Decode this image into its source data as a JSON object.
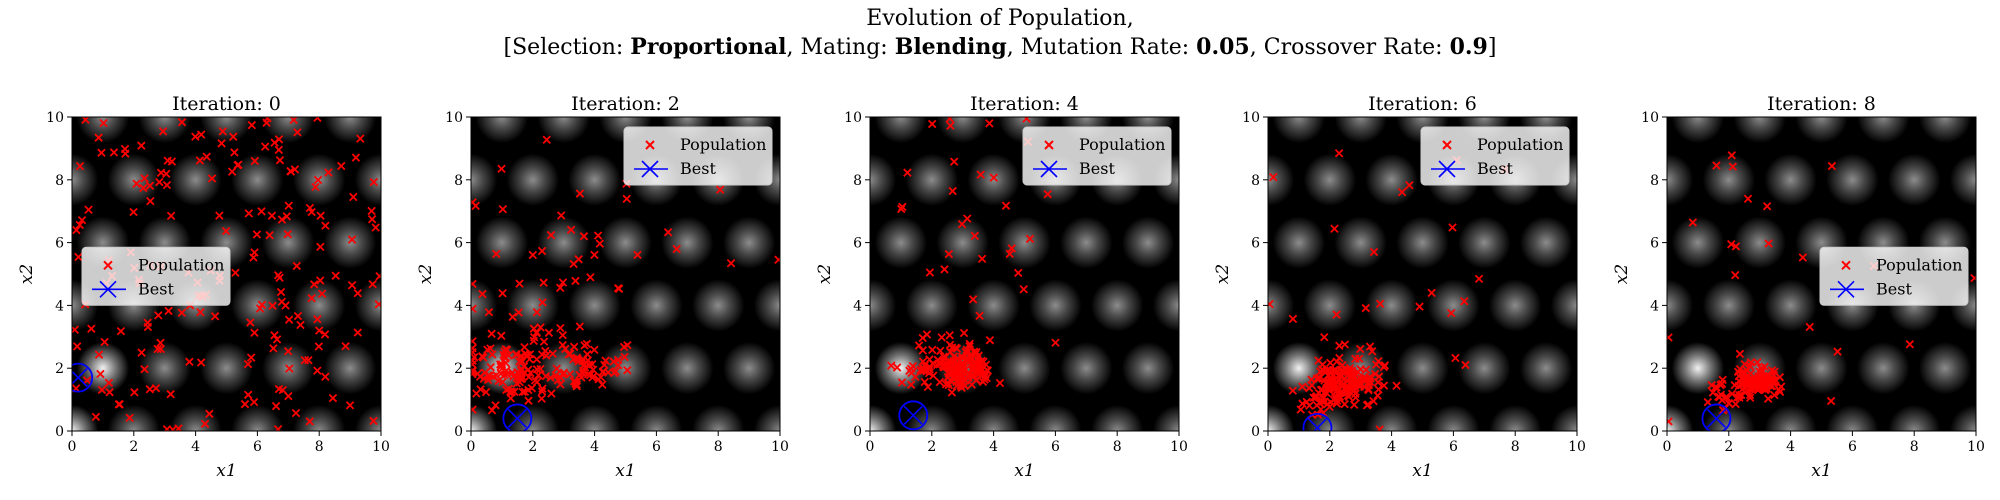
{
  "figure": {
    "title_line1": "Evolution of Population,",
    "title_line2": {
      "p1": "[Selection: ",
      "selection": "Proportional",
      "p2": ", Mating: ",
      "mating": "Blending",
      "p3": ", Mutation Rate: ",
      "mutation_rate": "0.05",
      "p4": ", Crossover Rate: ",
      "crossover_rate": "0.9",
      "p5": "]"
    }
  },
  "colors": {
    "population": "#ff0000",
    "best": "#0000ff",
    "background": "#000000"
  },
  "chart_data": [
    {
      "type": "scatter",
      "title": "Iteration: 0",
      "xlabel": "x1",
      "ylabel": "x2",
      "xlim": [
        0,
        10
      ],
      "ylim": [
        0,
        10
      ],
      "xticks": [
        0,
        2,
        4,
        6,
        8,
        10
      ],
      "yticks": [
        0,
        2,
        4,
        6,
        8,
        10
      ],
      "legend": {
        "placement": "center-left",
        "entries": [
          "Population",
          "Best"
        ]
      },
      "population": {
        "spread": "uniform",
        "count": 200
      },
      "best": [
        0.2,
        1.7
      ]
    },
    {
      "type": "scatter",
      "title": "Iteration: 2",
      "xlabel": "x1",
      "ylabel": "x2",
      "xlim": [
        0,
        10
      ],
      "ylim": [
        0,
        10
      ],
      "xticks": [
        0,
        2,
        4,
        6,
        8,
        10
      ],
      "yticks": [
        0,
        2,
        4,
        6,
        8,
        10
      ],
      "legend": {
        "placement": "top-right",
        "entries": [
          "Population",
          "Best"
        ]
      },
      "population": {
        "clusters": [
          [
            1.4,
            1.6,
            0.9,
            0.9,
            120
          ],
          [
            3.2,
            1.7,
            0.8,
            0.6,
            60
          ],
          [
            3.5,
            4.5,
            2.8,
            2.5,
            40
          ]
        ]
      },
      "best": [
        1.5,
        0.4
      ]
    },
    {
      "type": "scatter",
      "title": "Iteration: 4",
      "xlabel": "x1",
      "ylabel": "x2",
      "xlim": [
        0,
        10
      ],
      "ylim": [
        0,
        10
      ],
      "xticks": [
        0,
        2,
        4,
        6,
        8,
        10
      ],
      "yticks": [
        0,
        2,
        4,
        6,
        8,
        10
      ],
      "legend": {
        "placement": "top-right",
        "entries": [
          "Population",
          "Best"
        ]
      },
      "population": {
        "clusters": [
          [
            2.9,
            1.7,
            0.55,
            0.45,
            140
          ],
          [
            1.6,
            1.9,
            0.6,
            0.6,
            30
          ],
          [
            3.0,
            5.0,
            1.8,
            2.8,
            30
          ]
        ]
      },
      "best": [
        1.4,
        0.5
      ]
    },
    {
      "type": "scatter",
      "title": "Iteration: 6",
      "xlabel": "x1",
      "ylabel": "x2",
      "xlim": [
        0,
        10
      ],
      "ylim": [
        0,
        10
      ],
      "xticks": [
        0,
        2,
        4,
        6,
        8,
        10
      ],
      "yticks": [
        0,
        2,
        4,
        6,
        8,
        10
      ],
      "legend": {
        "placement": "top-right",
        "entries": [
          "Population",
          "Best"
        ]
      },
      "population": {
        "clusters": [
          [
            2.5,
            1.3,
            0.6,
            0.5,
            150
          ],
          [
            1.7,
            0.8,
            0.4,
            0.4,
            30
          ],
          [
            4.0,
            3.5,
            2.5,
            2.8,
            25
          ]
        ]
      },
      "best": [
        1.6,
        0.1
      ]
    },
    {
      "type": "scatter",
      "title": "Iteration: 8",
      "xlabel": "x1",
      "ylabel": "x2",
      "xlim": [
        0,
        10
      ],
      "ylim": [
        0,
        10
      ],
      "xticks": [
        0,
        2,
        4,
        6,
        8,
        10
      ],
      "yticks": [
        0,
        2,
        4,
        6,
        8,
        10
      ],
      "legend": {
        "placement": "center-right",
        "entries": [
          "Population",
          "Best"
        ]
      },
      "population": {
        "clusters": [
          [
            2.9,
            1.4,
            0.35,
            0.3,
            120
          ],
          [
            1.8,
            0.9,
            0.4,
            0.4,
            20
          ],
          [
            4.0,
            4.0,
            2.5,
            3.0,
            20
          ]
        ]
      },
      "best": [
        1.6,
        0.4
      ]
    }
  ]
}
